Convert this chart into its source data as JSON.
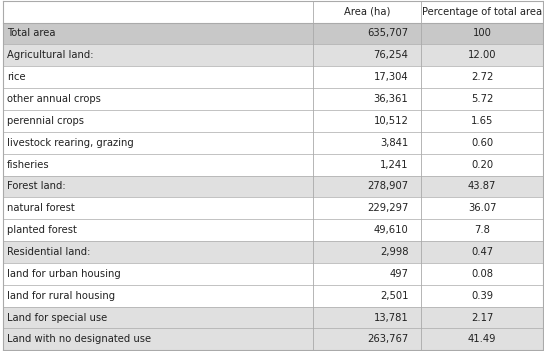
{
  "headers": [
    "",
    "Area (ha)",
    "Percentage of total area"
  ],
  "rows": [
    {
      "label": "Total area",
      "area": "635,707",
      "pct": "100",
      "bg": "#c8c8c8"
    },
    {
      "label": "Agricultural land:",
      "area": "76,254",
      "pct": "12.00",
      "bg": "#e0e0e0"
    },
    {
      "label": "rice",
      "area": "17,304",
      "pct": "2.72",
      "bg": "#ffffff"
    },
    {
      "label": "other annual crops",
      "area": "36,361",
      "pct": "5.72",
      "bg": "#ffffff"
    },
    {
      "label": "perennial crops",
      "area": "10,512",
      "pct": "1.65",
      "bg": "#ffffff"
    },
    {
      "label": "livestock rearing, grazing",
      "area": "3,841",
      "pct": "0.60",
      "bg": "#ffffff"
    },
    {
      "label": "fisheries",
      "area": "1,241",
      "pct": "0.20",
      "bg": "#ffffff"
    },
    {
      "label": "Forest land:",
      "area": "278,907",
      "pct": "43.87",
      "bg": "#e0e0e0"
    },
    {
      "label": "natural forest",
      "area": "229,297",
      "pct": "36.07",
      "bg": "#ffffff"
    },
    {
      "label": "planted forest",
      "area": "49,610",
      "pct": "7.8",
      "bg": "#ffffff"
    },
    {
      "label": "Residential land:",
      "area": "2,998",
      "pct": "0.47",
      "bg": "#e0e0e0"
    },
    {
      "label": "land for urban housing",
      "area": "497",
      "pct": "0.08",
      "bg": "#ffffff"
    },
    {
      "label": "land for rural housing",
      "area": "2,501",
      "pct": "0.39",
      "bg": "#ffffff"
    },
    {
      "label": "Land for special use",
      "area": "13,781",
      "pct": "2.17",
      "bg": "#e0e0e0"
    },
    {
      "label": "Land with no designated use",
      "area": "263,767",
      "pct": "41.49",
      "bg": "#e0e0e0"
    }
  ],
  "header_bg": "#ffffff",
  "border_color": "#aaaaaa",
  "figsize": [
    5.44,
    3.51
  ],
  "dpi": 100,
  "font_size": 7.2,
  "header_font_size": 7.2,
  "col_splits": [
    0.575,
    0.775
  ],
  "text_color": "#222222"
}
